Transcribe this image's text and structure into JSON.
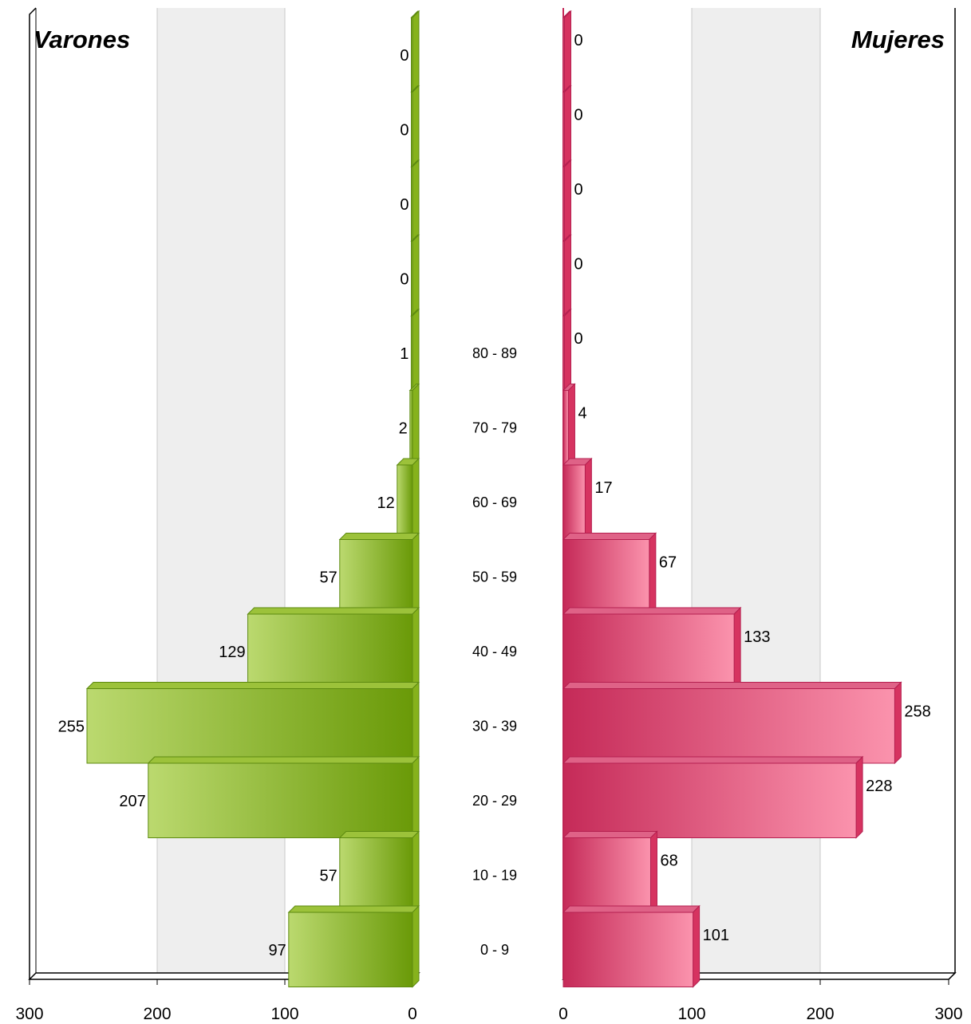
{
  "chart_data": {
    "type": "bar",
    "orientation": "horizontal",
    "layout": "population-pyramid",
    "categories": [
      "0 - 9",
      "10 - 19",
      "20 - 29",
      "30 - 39",
      "40 - 49",
      "50 - 59",
      "60 - 69",
      "70 - 79",
      "80 - 89",
      "",
      "",
      "",
      ""
    ],
    "xlim": [
      0,
      300
    ],
    "xticks": [
      "0",
      "100",
      "200",
      "300"
    ],
    "grid": true,
    "series": [
      {
        "name": "Varones",
        "color": "#7ba428",
        "values": [
          97,
          57,
          207,
          255,
          129,
          57,
          12,
          2,
          1,
          0,
          0,
          0,
          0
        ]
      },
      {
        "name": "Mujeres",
        "color": "#d9496f",
        "values": [
          101,
          68,
          228,
          258,
          133,
          67,
          17,
          4,
          0,
          0,
          0,
          0,
          0
        ]
      }
    ]
  },
  "colors": {
    "male_light": "#bbd96f",
    "male_dark": "#6a9a08",
    "male_top": "#9cc23a",
    "male_side": "#86b21c",
    "female_dark": "#c52a58",
    "female_light": "#fb93ad",
    "female_top": "#df6287",
    "female_side": "#d63360"
  }
}
